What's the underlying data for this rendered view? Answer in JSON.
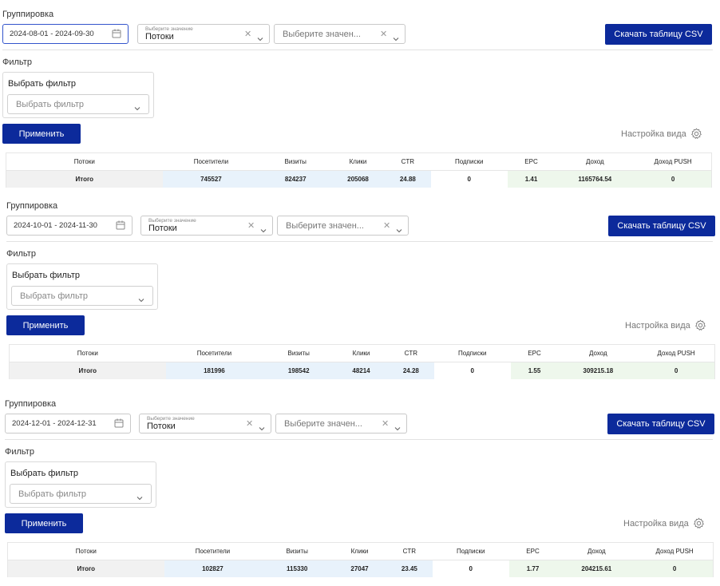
{
  "common": {
    "grouping_label": "Группировка",
    "select_hint": "Выберите значение",
    "select_value": "Потоки",
    "select_placeholder": "Выберите значен...",
    "csv_button": "Скачать таблицу CSV",
    "filter_label": "Фильтр",
    "filter_panel_title": "Выбрать фильтр",
    "filter_placeholder": "Выбрать фильтр",
    "apply_button": "Применить",
    "view_settings": "Настройка вида",
    "clear_symbol": "✕",
    "icons": [
      "calendar-icon",
      "chevron-down-icon",
      "close-icon",
      "gear-icon"
    ]
  },
  "table_headers": [
    "Потоки",
    "Посетители",
    "Визиты",
    "Клики",
    "CTR",
    "Подписки",
    "EPC",
    "Доход",
    "Доход PUSH"
  ],
  "sections": [
    {
      "date_range": "2024-08-01 - 2024-09-30",
      "total": [
        "Итого",
        "745527",
        "824237",
        "205068",
        "24.88",
        "0",
        "1.41",
        "1165764.54",
        "0"
      ]
    },
    {
      "date_range": "2024-10-01 - 2024-11-30",
      "total": [
        "Итого",
        "181996",
        "198542",
        "48214",
        "24.28",
        "0",
        "1.55",
        "309215.18",
        "0"
      ]
    },
    {
      "date_range": "2024-12-01 - 2024-12-31",
      "total": [
        "Итого",
        "102827",
        "115330",
        "27047",
        "23.45",
        "0",
        "1.77",
        "204215.61",
        "0"
      ]
    }
  ],
  "colors": {
    "primary_button": "#0c2a9b",
    "tint_gray": "#f1f1f1",
    "tint_blue": "#e8f2fb",
    "tint_green": "#eef7ec"
  }
}
